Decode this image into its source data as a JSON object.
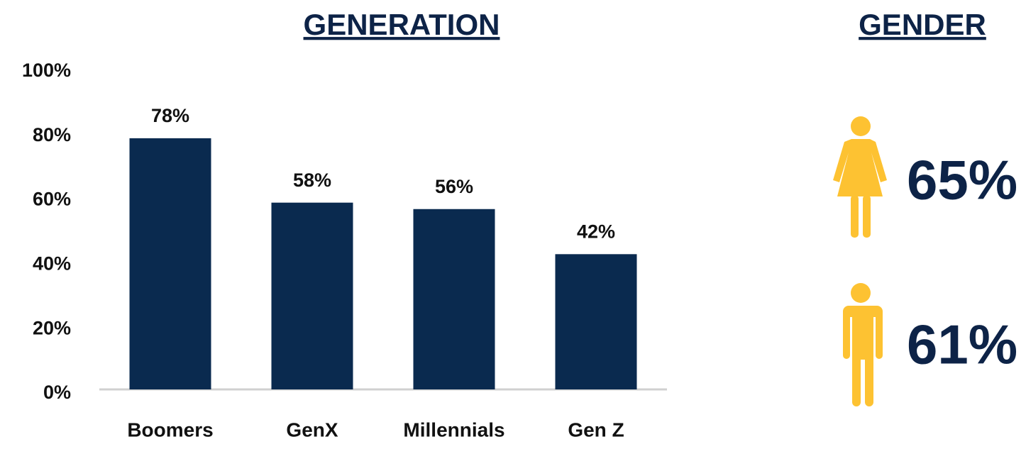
{
  "chart_data": [
    {
      "type": "bar",
      "title": "GENERATION",
      "categories": [
        "Boomers",
        "GenX",
        "Millennials",
        "Gen Z"
      ],
      "values": [
        78,
        58,
        56,
        42
      ],
      "value_labels": [
        "78%",
        "58%",
        "56%",
        "42%"
      ],
      "color": "#0a2a4f",
      "ylim": [
        0,
        100
      ],
      "yticks": [
        {
          "value": 0,
          "label": "0%"
        },
        {
          "value": 20,
          "label": "20%"
        },
        {
          "value": 40,
          "label": "40%"
        },
        {
          "value": 60,
          "label": "60%"
        },
        {
          "value": 80,
          "label": "80%"
        },
        {
          "value": 100,
          "label": "100%"
        }
      ],
      "grid": false
    },
    {
      "type": "pictogram",
      "title": "GENDER",
      "values": [
        65,
        61
      ],
      "value_labels": [
        "65%",
        "61%"
      ],
      "color": "#fdc232"
    }
  ]
}
